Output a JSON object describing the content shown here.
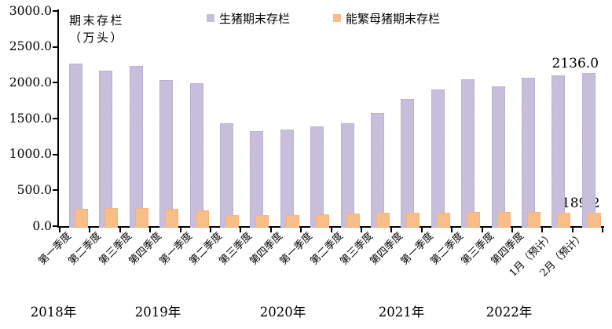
{
  "chart_data": {
    "type": "bar",
    "y_axis_title_line1": "期末存栏",
    "y_axis_title_line2": "（万头）",
    "legend_position": "top-center",
    "grid": false,
    "ylim": [
      0,
      3000
    ],
    "y_tick_step": 500,
    "y_ticks": [
      "3000.0",
      "2500.0",
      "2000.0",
      "1500.0",
      "1000.0",
      "500.0",
      "0.0"
    ],
    "categories": [
      "第一季度",
      "第二季度",
      "第三季度",
      "第四季度",
      "第一季度",
      "第二季度",
      "第三季度",
      "第四季度",
      "第一季度",
      "第二季度",
      "第三季度",
      "第四季度",
      "第一季度",
      "第二季度",
      "第三季度",
      "第四季度",
      "1月（预计）",
      "2月（预计）"
    ],
    "year_groups": [
      "2018年",
      "2019年",
      "2020年",
      "2021年",
      "2022年"
    ],
    "series": [
      {
        "name": "生猪期末存栏",
        "color": "#c7bedb",
        "values": [
          2270,
          2172,
          2233,
          2036,
          1988,
          1431,
          1321,
          1343,
          1387,
          1438,
          1577,
          1775,
          1906,
          2044,
          1953,
          2074,
          2099,
          2136.0
        ]
      },
      {
        "name": "能繁母猪期末存栏",
        "color": "#f9bd87",
        "values": [
          245,
          247,
          252,
          241,
          216,
          151,
          148,
          153,
          166,
          172,
          181,
          188,
          190,
          198,
          196,
          193,
          191,
          189.2
        ]
      }
    ],
    "data_labels": [
      {
        "series": 0,
        "index": 17,
        "text": "2136.0"
      },
      {
        "series": 1,
        "index": 17,
        "text": "189.2"
      }
    ]
  }
}
